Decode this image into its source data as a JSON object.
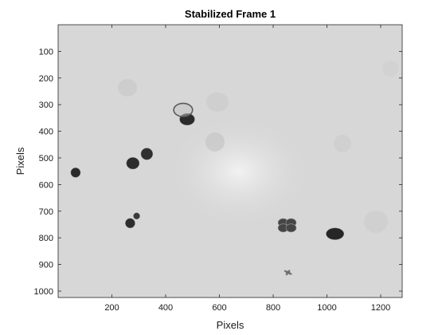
{
  "figure": {
    "title": "Stabilized Frame 1",
    "xlabel": "Pixels",
    "ylabel": "Pixels"
  },
  "axes": {
    "xlim": [
      0,
      1280
    ],
    "ylim": [
      0,
      1024
    ],
    "x_ticks": [
      200,
      400,
      600,
      800,
      1000,
      1200
    ],
    "y_ticks": [
      100,
      200,
      300,
      400,
      500,
      600,
      700,
      800,
      900,
      1000
    ],
    "y_direction": "reverse"
  },
  "image": {
    "background_color": "#d7d7d7",
    "blobs": [
      {
        "kind": "cell-cluster",
        "x": 480,
        "y": 355,
        "rx": 28,
        "ry": 22,
        "color": "#2b2b2b"
      },
      {
        "kind": "ring-cell",
        "x": 465,
        "y": 320,
        "rx": 35,
        "ry": 25,
        "color": "#5a5a5a"
      },
      {
        "kind": "cell",
        "x": 330,
        "y": 485,
        "rx": 22,
        "ry": 22,
        "color": "#2f2f2f"
      },
      {
        "kind": "cell",
        "x": 278,
        "y": 520,
        "rx": 24,
        "ry": 22,
        "color": "#2c2c2c"
      },
      {
        "kind": "cell",
        "x": 65,
        "y": 555,
        "rx": 18,
        "ry": 18,
        "color": "#2a2a2a"
      },
      {
        "kind": "cell",
        "x": 292,
        "y": 718,
        "rx": 12,
        "ry": 12,
        "color": "#3a3a3a"
      },
      {
        "kind": "cell",
        "x": 268,
        "y": 745,
        "rx": 18,
        "ry": 18,
        "color": "#2d2d2d"
      },
      {
        "kind": "cluster",
        "x": 852,
        "y": 752,
        "rx": 35,
        "ry": 28,
        "color": "#454545"
      },
      {
        "kind": "cell",
        "x": 1030,
        "y": 785,
        "rx": 33,
        "ry": 22,
        "color": "#262626"
      },
      {
        "kind": "debris",
        "x": 855,
        "y": 930,
        "rx": 25,
        "ry": 18,
        "color": "#555555"
      }
    ]
  }
}
